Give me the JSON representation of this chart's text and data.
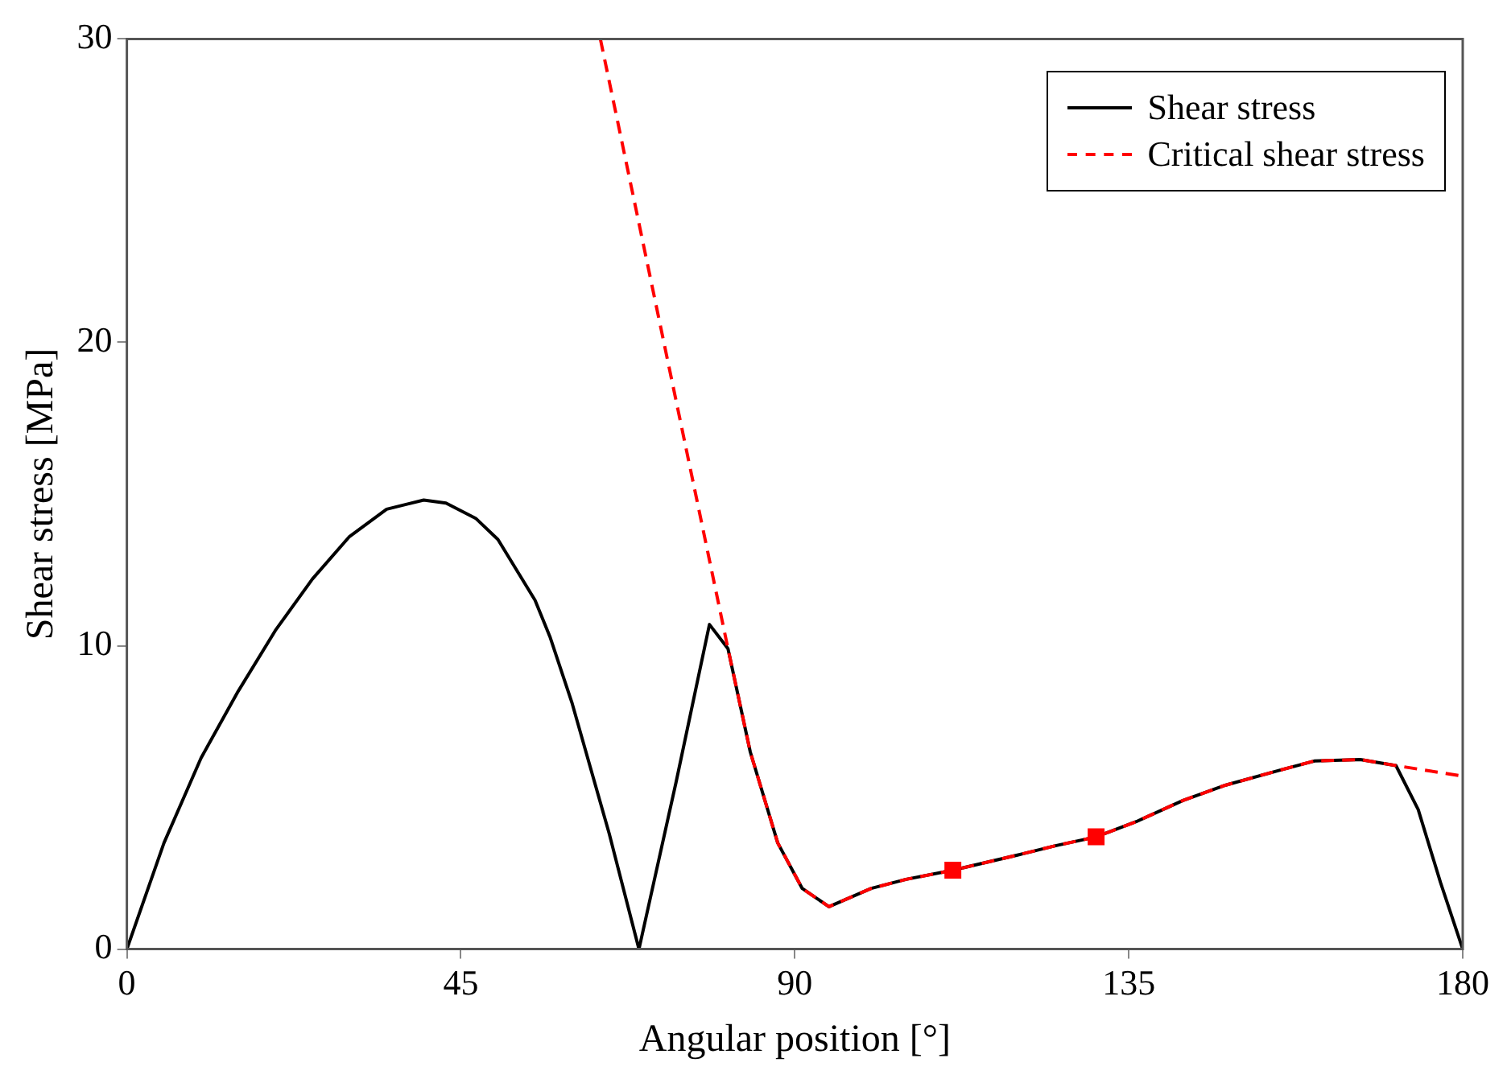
{
  "chart_data": {
    "type": "line",
    "xlabel": "Angular position [°]",
    "ylabel": "Shear stress [MPa]",
    "xlim": [
      0,
      180
    ],
    "xticks": [
      0,
      45,
      90,
      135,
      180
    ],
    "ylim": [
      0,
      30
    ],
    "yticks": [
      0,
      10,
      20,
      30
    ],
    "grid": false,
    "legend": "top right",
    "marker": "none",
    "series": [
      {
        "name": "Shear stress",
        "color": "#000000",
        "line_style": "solid",
        "x": [
          0,
          5,
          10,
          15,
          20,
          25,
          30,
          35,
          40,
          43,
          47,
          50,
          55,
          57,
          60,
          65,
          69,
          74,
          78.5,
          81,
          84,
          87.7,
          91,
          94.6,
          100.3,
          105,
          111.3,
          120,
          125,
          130.6,
          136,
          142.3,
          148,
          155.4,
          160,
          166.2,
          171,
          174,
          177,
          180
        ],
        "values": [
          0,
          3.5,
          6.3,
          8.5,
          10.5,
          12.2,
          13.6,
          14.5,
          14.8,
          14.7,
          14.2,
          13.5,
          11.5,
          10.3,
          8.1,
          3.8,
          0,
          5.5,
          10.7,
          9.9,
          6.5,
          3.5,
          2.0,
          1.4,
          2.0,
          2.3,
          2.6,
          3.1,
          3.4,
          3.7,
          4.2,
          4.9,
          5.4,
          5.9,
          6.2,
          6.25,
          6.05,
          4.6,
          2.2,
          0
        ]
      },
      {
        "name": "Critical shear stress",
        "color": "#ff0000",
        "line_style": "dashed",
        "x": [
          63.8,
          81,
          84,
          87.7,
          91,
          94.6,
          100.3,
          105,
          111.3,
          120,
          125,
          130.6,
          136,
          142.3,
          148,
          155.4,
          160,
          166.2,
          171,
          180
        ],
        "values": [
          30,
          9.9,
          6.5,
          3.5,
          2.0,
          1.4,
          2.0,
          2.3,
          2.6,
          3.1,
          3.4,
          3.7,
          4.2,
          4.9,
          5.4,
          5.9,
          6.2,
          6.25,
          6.05,
          5.7
        ]
      },
      {
        "type": "scatter",
        "color": "#ff0000",
        "marker": "square",
        "x": [
          111.3,
          130.6
        ],
        "values": [
          2.6,
          3.7
        ]
      }
    ]
  }
}
